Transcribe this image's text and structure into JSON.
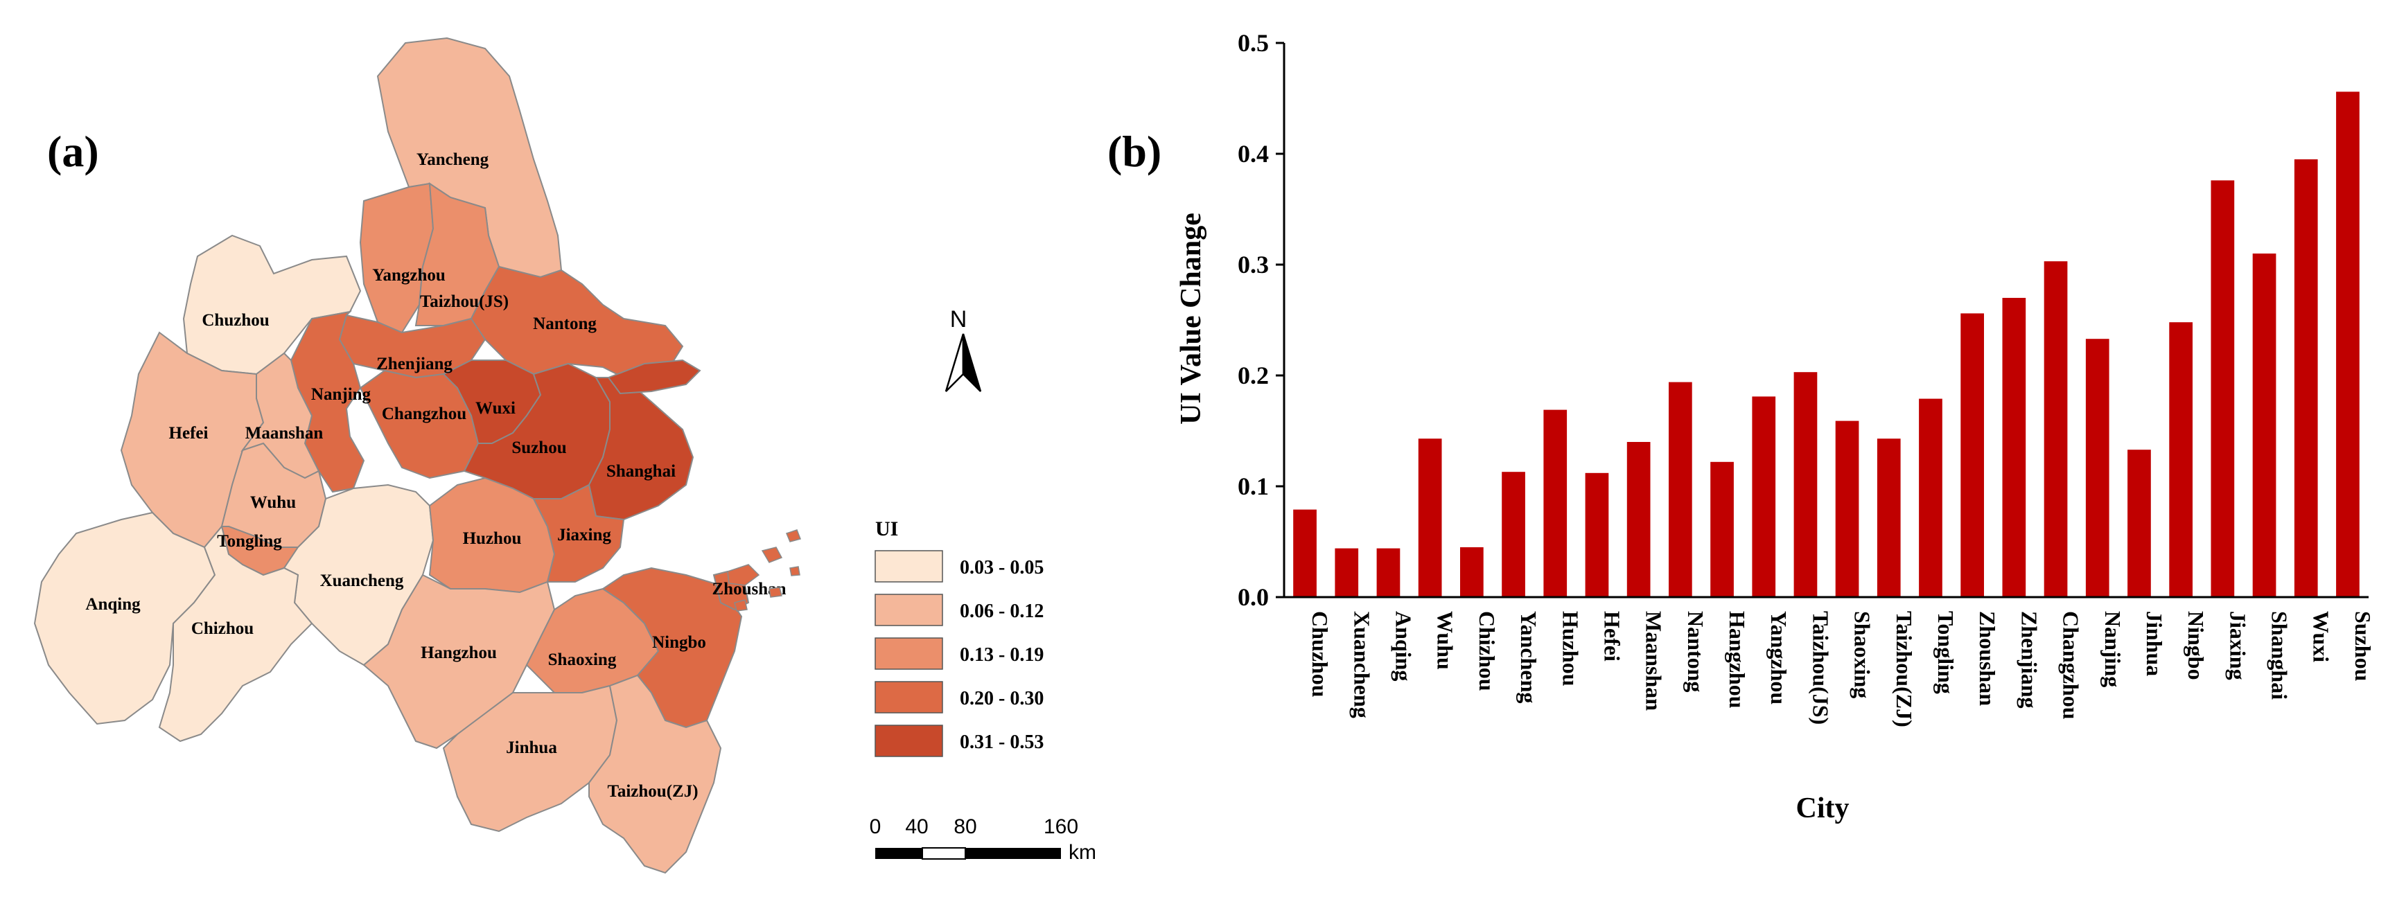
{
  "panel_a": {
    "label": "(a)",
    "north_label": "N",
    "legend": {
      "title": "UI",
      "classes": [
        {
          "range": "0.03 - 0.05",
          "color": "#fde7d3"
        },
        {
          "range": "0.06 - 0.12",
          "color": "#f4b79a"
        },
        {
          "range": "0.13 - 0.19",
          "color": "#eb8f6b"
        },
        {
          "range": "0.20 - 0.30",
          "color": "#dd6a45"
        },
        {
          "range": "0.31 - 0.53",
          "color": "#c8492b"
        }
      ]
    },
    "scale_bar": {
      "ticks": [
        "0",
        "40",
        "80",
        "160"
      ],
      "unit": "km"
    },
    "cities": [
      {
        "name": "Yancheng",
        "class": 1
      },
      {
        "name": "Yangzhou",
        "class": 2
      },
      {
        "name": "Taizhou(JS)",
        "class": 2
      },
      {
        "name": "Nantong",
        "class": 3
      },
      {
        "name": "Chuzhou",
        "class": 0
      },
      {
        "name": "Zhenjiang",
        "class": 3
      },
      {
        "name": "Nanjing",
        "class": 3
      },
      {
        "name": "Changzhou",
        "class": 3
      },
      {
        "name": "Wuxi",
        "class": 4
      },
      {
        "name": "Suzhou",
        "class": 4
      },
      {
        "name": "Shanghai",
        "class": 4
      },
      {
        "name": "Hefei",
        "class": 1
      },
      {
        "name": "Maanshan",
        "class": 1
      },
      {
        "name": "Wuhu",
        "class": 1
      },
      {
        "name": "Tongling",
        "class": 2
      },
      {
        "name": "Xuancheng",
        "class": 0
      },
      {
        "name": "Huzhou",
        "class": 2
      },
      {
        "name": "Jiaxing",
        "class": 3
      },
      {
        "name": "Anqing",
        "class": 0
      },
      {
        "name": "Chizhou",
        "class": 0
      },
      {
        "name": "Hangzhou",
        "class": 1
      },
      {
        "name": "Shaoxing",
        "class": 2
      },
      {
        "name": "Ningbo",
        "class": 3
      },
      {
        "name": "Zhoushan",
        "class": 3
      },
      {
        "name": "Jinhua",
        "class": 1
      },
      {
        "name": "Taizhou(ZJ)",
        "class": 1
      }
    ]
  },
  "chart_data": {
    "type": "bar",
    "panel_label": "(b)",
    "title": "",
    "xlabel": "City",
    "ylabel": "UI Value Change",
    "ylim": [
      0,
      0.5
    ],
    "yticks": [
      "0.0",
      "0.1",
      "0.2",
      "0.3",
      "0.4",
      "0.5"
    ],
    "bar_color": "#c00000",
    "categories": [
      "Chuzhou",
      "Xuancheng",
      "Anqing",
      "Wuhu",
      "Chizhou",
      "Yancheng",
      "Huzhou",
      "Hefei",
      "Maanshan",
      "Nantong",
      "Hangzhou",
      "Yangzhou",
      "Taizhou(JS)",
      "Shaoxing",
      "Taizhou(ZJ)",
      "Tongling",
      "Zhoushan",
      "Zhenjiang",
      "Changzhou",
      "Nanjing",
      "Jinhua",
      "Ningbo",
      "Jiaxing",
      "Shanghai",
      "Wuxi",
      "Suzhou"
    ],
    "values": [
      0.079,
      0.044,
      0.044,
      0.143,
      0.045,
      0.113,
      0.169,
      0.112,
      0.14,
      0.194,
      0.122,
      0.181,
      0.203,
      0.159,
      0.143,
      0.179,
      0.256,
      0.27,
      0.303,
      0.233,
      0.133,
      0.248,
      0.376,
      0.31,
      0.395,
      0.456
    ]
  }
}
